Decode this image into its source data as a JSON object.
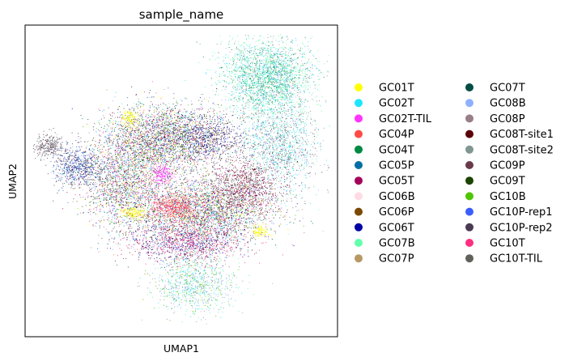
{
  "chart_data": {
    "type": "scatter",
    "title": "sample_name",
    "xlabel": "UMAP1",
    "ylabel": "UMAP2",
    "grid": false,
    "ticks": false,
    "legend_placement": "right",
    "series": [
      {
        "name": "GC01T",
        "color": "#ffff00"
      },
      {
        "name": "GC02T",
        "color": "#1ce6ff"
      },
      {
        "name": "GC02T-TIL",
        "color": "#ff34ff"
      },
      {
        "name": "GC04P",
        "color": "#ff4a46"
      },
      {
        "name": "GC04T",
        "color": "#008941"
      },
      {
        "name": "GC05P",
        "color": "#006fa6"
      },
      {
        "name": "GC05T",
        "color": "#a30059"
      },
      {
        "name": "GC06B",
        "color": "#ffdbe5"
      },
      {
        "name": "GC06P",
        "color": "#7a4900"
      },
      {
        "name": "GC06T",
        "color": "#0000a6"
      },
      {
        "name": "GC07B",
        "color": "#63ffac"
      },
      {
        "name": "GC07P",
        "color": "#b79762"
      },
      {
        "name": "GC07T",
        "color": "#004d43"
      },
      {
        "name": "GC08B",
        "color": "#8fb0ff"
      },
      {
        "name": "GC08P",
        "color": "#997d87"
      },
      {
        "name": "GC08T-site1",
        "color": "#5a0007"
      },
      {
        "name": "GC08T-site2",
        "color": "#809693"
      },
      {
        "name": "GC09P",
        "color": "#6a3a4c"
      },
      {
        "name": "GC09T",
        "color": "#1b4400"
      },
      {
        "name": "GC10B",
        "color": "#4fc601"
      },
      {
        "name": "GC10P-rep1",
        "color": "#3b5dff"
      },
      {
        "name": "GC10P-rep2",
        "color": "#4a3b53"
      },
      {
        "name": "GC10T",
        "color": "#ff2f80"
      },
      {
        "name": "GC10T-TIL",
        "color": "#61615a"
      }
    ]
  }
}
